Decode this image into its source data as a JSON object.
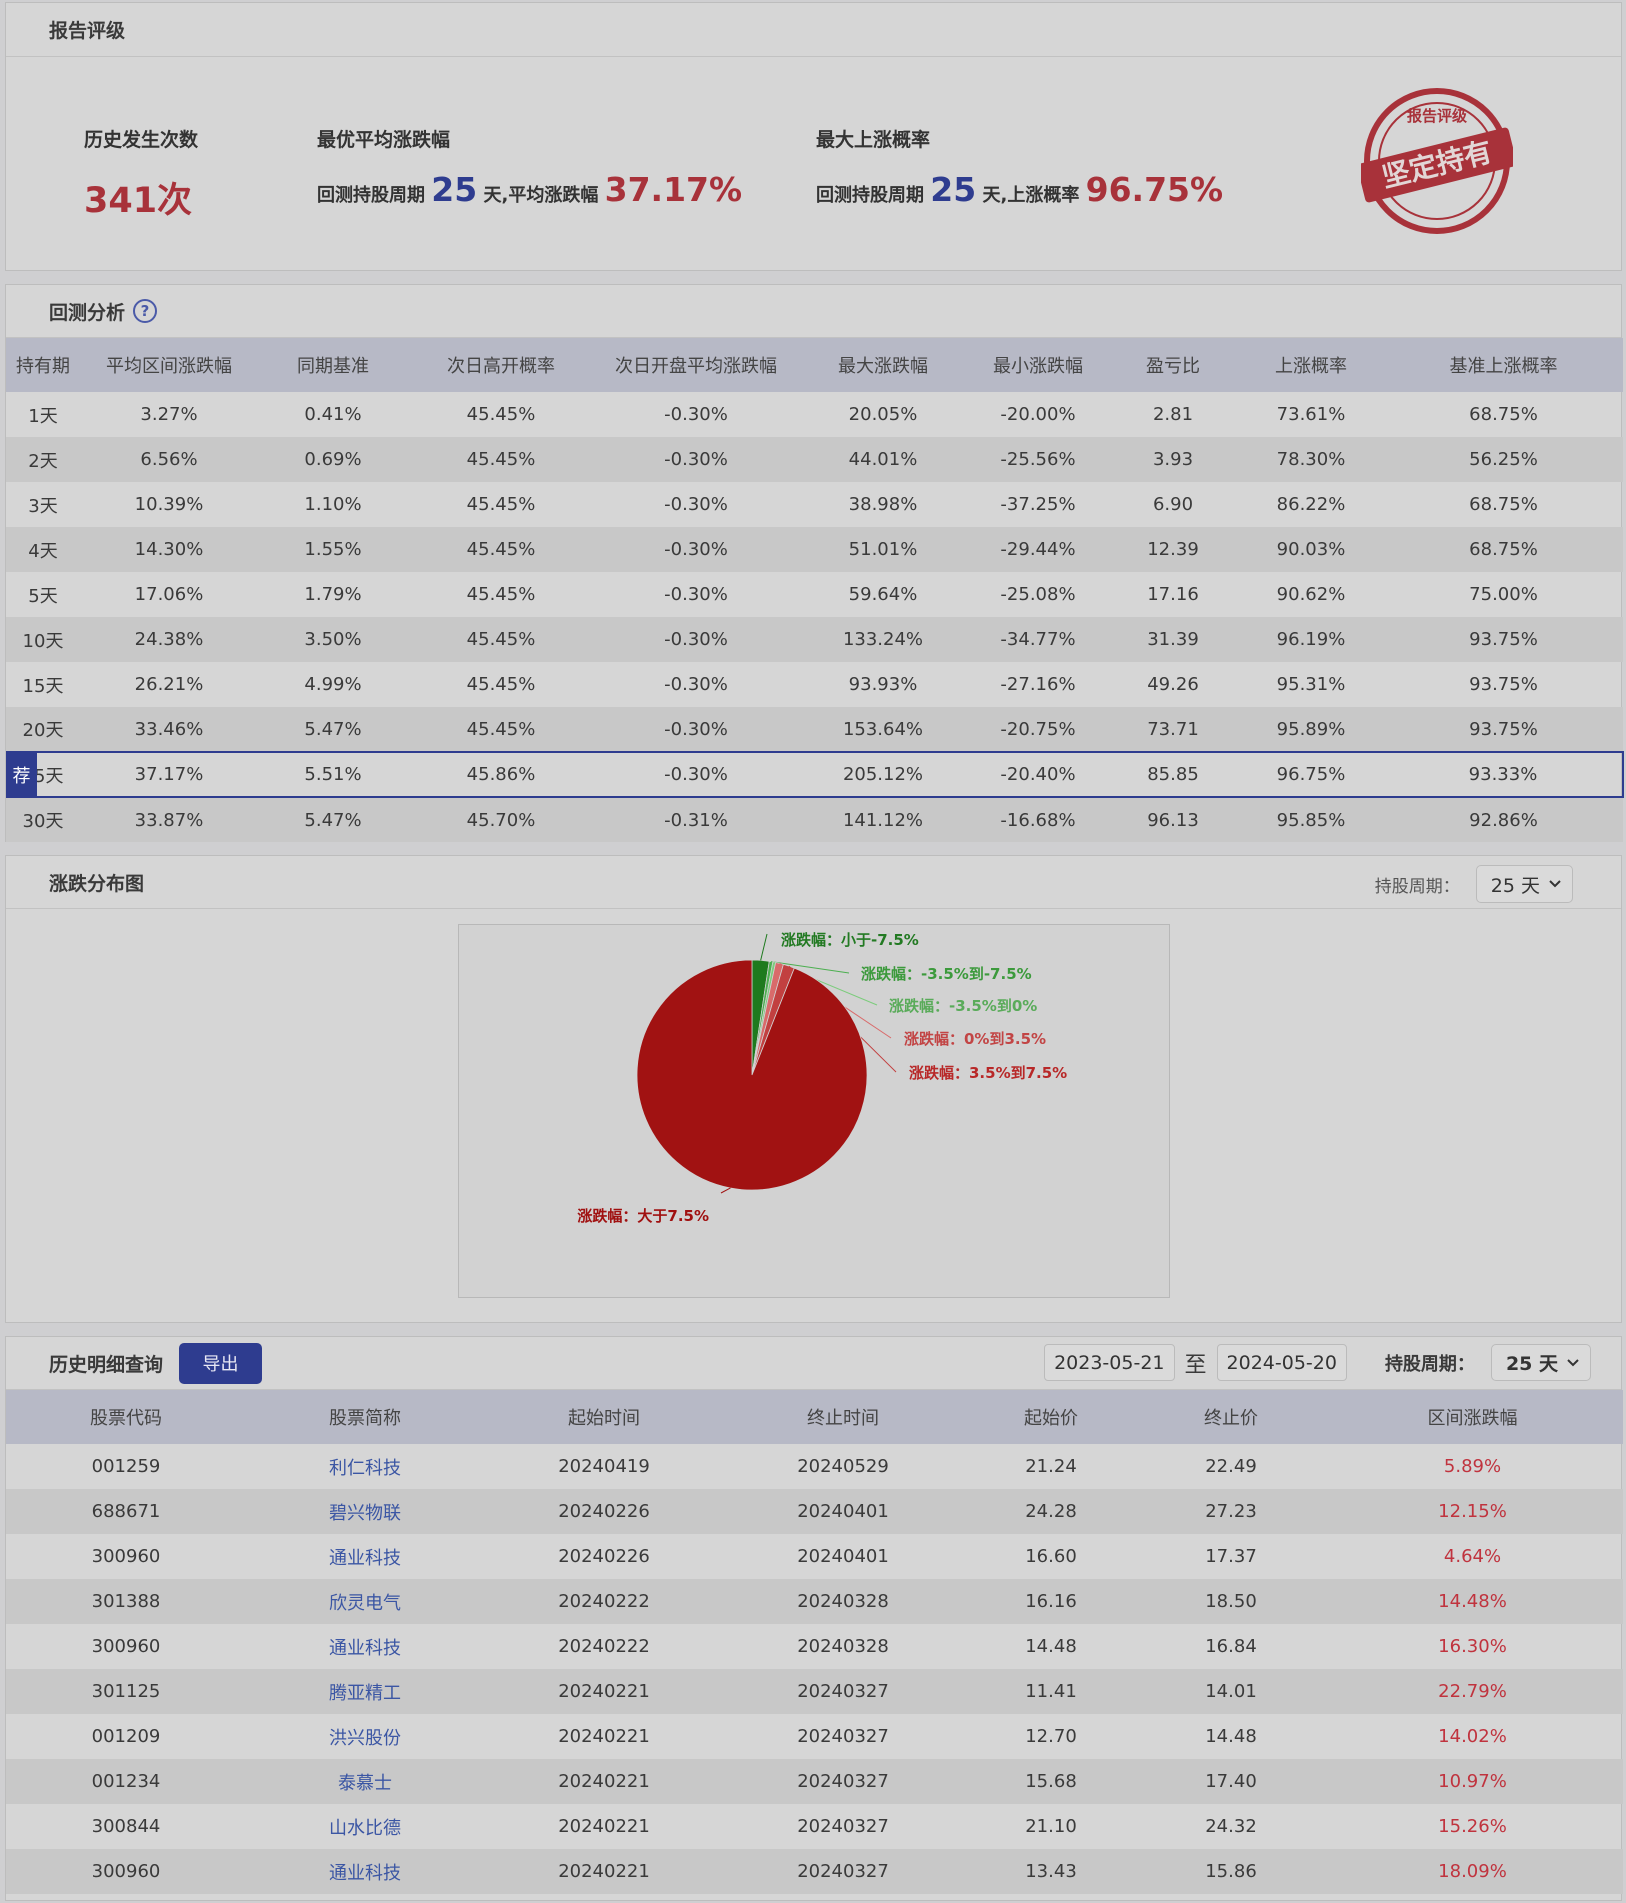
{
  "rating": {
    "title": "报告评级",
    "count_label": "历史发生次数",
    "count_value": "341次",
    "best_avg_label": "最优平均涨跌幅",
    "best_avg_prefix": "回测持股周期",
    "best_avg_days": "25",
    "best_avg_mid": "天,平均涨跌幅",
    "best_avg_value": "37.17%",
    "max_up_label": "最大上涨概率",
    "max_up_prefix": "回测持股周期",
    "max_up_days": "25",
    "max_up_mid": "天,上涨概率",
    "max_up_value": "96.75%",
    "stamp_top": "报告评级",
    "stamp_main": "坚定持有"
  },
  "backtest": {
    "title": "回测分析",
    "help_glyph": "?",
    "rec_tag": "荐",
    "columns": [
      "持有期",
      "平均区间涨跌幅",
      "同期基准",
      "次日高开概率",
      "次日开盘平均涨跌幅",
      "最大涨跌幅",
      "最小涨跌幅",
      "盈亏比",
      "上涨概率",
      "基准上涨概率"
    ],
    "rows": [
      [
        "1天",
        "3.27%",
        "0.41%",
        "45.45%",
        "-0.30%",
        "20.05%",
        "-20.00%",
        "2.81",
        "73.61%",
        "68.75%"
      ],
      [
        "2天",
        "6.56%",
        "0.69%",
        "45.45%",
        "-0.30%",
        "44.01%",
        "-25.56%",
        "3.93",
        "78.30%",
        "56.25%"
      ],
      [
        "3天",
        "10.39%",
        "1.10%",
        "45.45%",
        "-0.30%",
        "38.98%",
        "-37.25%",
        "6.90",
        "86.22%",
        "68.75%"
      ],
      [
        "4天",
        "14.30%",
        "1.55%",
        "45.45%",
        "-0.30%",
        "51.01%",
        "-29.44%",
        "12.39",
        "90.03%",
        "68.75%"
      ],
      [
        "5天",
        "17.06%",
        "1.79%",
        "45.45%",
        "-0.30%",
        "59.64%",
        "-25.08%",
        "17.16",
        "90.62%",
        "75.00%"
      ],
      [
        "10天",
        "24.38%",
        "3.50%",
        "45.45%",
        "-0.30%",
        "133.24%",
        "-34.77%",
        "31.39",
        "96.19%",
        "93.75%"
      ],
      [
        "15天",
        "26.21%",
        "4.99%",
        "45.45%",
        "-0.30%",
        "93.93%",
        "-27.16%",
        "49.26",
        "95.31%",
        "93.75%"
      ],
      [
        "20天",
        "33.46%",
        "5.47%",
        "45.45%",
        "-0.30%",
        "153.64%",
        "-20.75%",
        "73.71",
        "95.89%",
        "93.75%"
      ],
      [
        "25天",
        "37.17%",
        "5.51%",
        "45.86%",
        "-0.30%",
        "205.12%",
        "-20.40%",
        "85.85",
        "96.75%",
        "93.33%"
      ],
      [
        "30天",
        "33.87%",
        "5.47%",
        "45.70%",
        "-0.31%",
        "141.12%",
        "-16.68%",
        "96.13",
        "95.85%",
        "92.86%"
      ]
    ],
    "highlight_row": 8
  },
  "distribution": {
    "title": "涨跌分布图",
    "hold_label": "持股周期：",
    "hold_value": "25 天"
  },
  "chart_data": {
    "type": "pie",
    "slices": [
      {
        "label": "涨跌幅：小于-7.5%",
        "value": 2.4,
        "color": "#1e7a1e",
        "label_color": "#237a23"
      },
      {
        "label": "涨跌幅：-3.5%到-7.5%",
        "value": 0.5,
        "color": "#4caf50",
        "label_color": "#3c9a3c"
      },
      {
        "label": "涨跌幅：-3.5%到0%",
        "value": 0.4,
        "color": "#7ccc7c",
        "label_color": "#5aab5a"
      },
      {
        "label": "涨跌幅：0%到3.5%",
        "value": 1.1,
        "color": "#d96a6a",
        "label_color": "#c24545"
      },
      {
        "label": "涨跌幅：3.5%到7.5%",
        "value": 1.6,
        "color": "#c24040",
        "label_color": "#b82828"
      },
      {
        "label": "涨跌幅：大于7.5%",
        "value": 94.0,
        "color": "#a11212",
        "label_color": "#a01010"
      }
    ]
  },
  "history": {
    "title": "历史明细查询",
    "export_label": "导出",
    "date_from": "2023-05-21",
    "date_sep": "至",
    "date_to": "2024-05-20",
    "hold_label": "持股周期：",
    "hold_value": "25 天",
    "columns": [
      "股票代码",
      "股票简称",
      "起始时间",
      "终止时间",
      "起始价",
      "终止价",
      "区间涨跌幅"
    ],
    "rows": [
      [
        "001259",
        "利仁科技",
        "20240419",
        "20240529",
        "21.24",
        "22.49",
        "5.89%"
      ],
      [
        "688671",
        "碧兴物联",
        "20240226",
        "20240401",
        "24.28",
        "27.23",
        "12.15%"
      ],
      [
        "300960",
        "通业科技",
        "20240226",
        "20240401",
        "16.60",
        "17.37",
        "4.64%"
      ],
      [
        "301388",
        "欣灵电气",
        "20240222",
        "20240328",
        "16.16",
        "18.50",
        "14.48%"
      ],
      [
        "300960",
        "通业科技",
        "20240222",
        "20240328",
        "14.48",
        "16.84",
        "16.30%"
      ],
      [
        "301125",
        "腾亚精工",
        "20240221",
        "20240327",
        "11.41",
        "14.01",
        "22.79%"
      ],
      [
        "001209",
        "洪兴股份",
        "20240221",
        "20240327",
        "12.70",
        "14.48",
        "14.02%"
      ],
      [
        "001234",
        "泰慕士",
        "20240221",
        "20240327",
        "15.68",
        "17.40",
        "10.97%"
      ],
      [
        "300844",
        "山水比德",
        "20240221",
        "20240327",
        "21.10",
        "24.32",
        "15.26%"
      ],
      [
        "300960",
        "通业科技",
        "20240221",
        "20240327",
        "13.43",
        "15.86",
        "18.09%"
      ]
    ]
  }
}
